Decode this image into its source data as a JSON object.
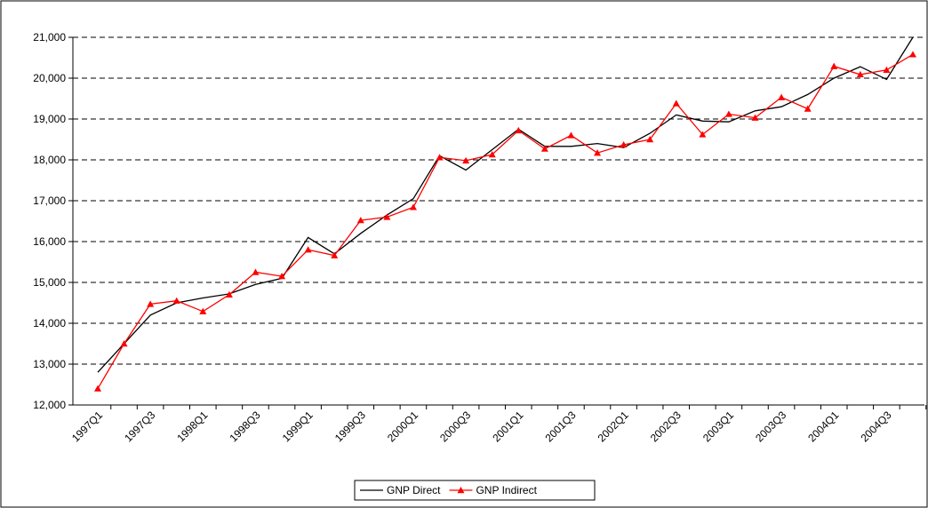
{
  "chart_data": {
    "type": "line",
    "categories": [
      "1997Q1",
      null,
      "1997Q3",
      null,
      "1998Q1",
      null,
      "1998Q3",
      null,
      "1999Q1",
      null,
      "1999Q3",
      null,
      "2000Q1",
      null,
      "2000Q3",
      null,
      "2001Q1",
      null,
      "2001Q3",
      null,
      "2002Q1",
      null,
      "2002Q3",
      null,
      "2003Q1",
      null,
      "2003Q3",
      null,
      "2004Q1",
      null,
      "2004Q3",
      null
    ],
    "series": [
      {
        "name": "GNP Direct",
        "color": "#000000",
        "values": [
          12800,
          13500,
          14200,
          14500,
          14620,
          14720,
          14950,
          15100,
          16100,
          15700,
          16200,
          16650,
          17050,
          18100,
          17750,
          18250,
          18750,
          18330,
          18330,
          18400,
          18300,
          18650,
          19100,
          18950,
          18930,
          19200,
          19300,
          19600,
          20000,
          20280,
          19970,
          21000
        ]
      },
      {
        "name": "GNP Indirect",
        "color": "#ff0000",
        "marker": "triangle",
        "values": [
          12400,
          13500,
          14470,
          14550,
          14290,
          14700,
          15250,
          15150,
          15800,
          15660,
          16520,
          16600,
          16840,
          18060,
          17980,
          18130,
          18720,
          18270,
          18600,
          18170,
          18370,
          18500,
          19380,
          18620,
          19120,
          19030,
          19530,
          19250,
          20290,
          20090,
          20200,
          20580
        ]
      }
    ],
    "ylim": [
      12000,
      21000
    ],
    "yticks": [
      {
        "value": 12000,
        "label": "12,000"
      },
      {
        "value": 13000,
        "label": "13,000"
      },
      {
        "value": 14000,
        "label": "14,000"
      },
      {
        "value": 15000,
        "label": "15,000"
      },
      {
        "value": 16000,
        "label": "16,000"
      },
      {
        "value": 17000,
        "label": "17,000"
      },
      {
        "value": 18000,
        "label": "18,000"
      },
      {
        "value": 19000,
        "label": "19,000"
      },
      {
        "value": 20000,
        "label": "20,000"
      },
      {
        "value": 21000,
        "label": "21,000"
      }
    ],
    "grid": true,
    "legend": "bottom"
  }
}
